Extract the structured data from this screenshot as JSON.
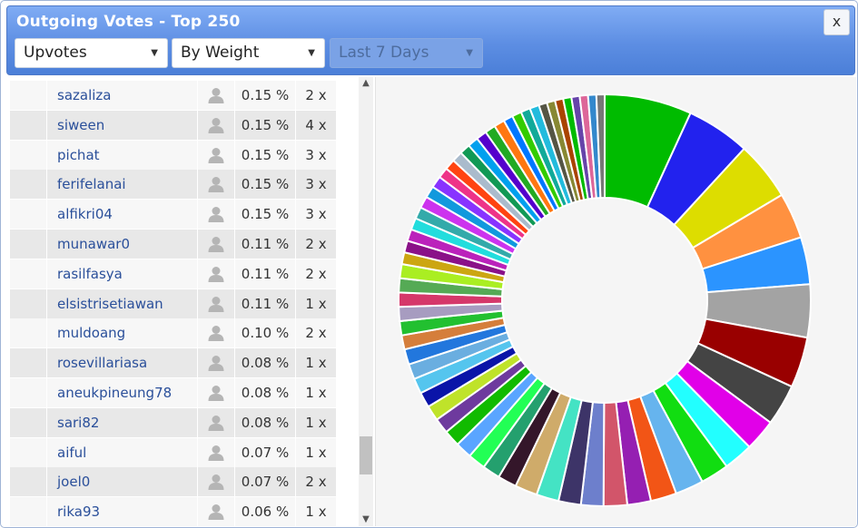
{
  "dialog": {
    "title": "Outgoing Votes - Top 250",
    "close_label": "x"
  },
  "filters": {
    "type": "Upvotes",
    "sort": "By Weight",
    "period": "Last 7 Days"
  },
  "icons": {
    "user": "user-silhouette-icon",
    "dropdown": "triangle-down-icon",
    "scroll_up": "chevron-up-icon",
    "scroll_down": "chevron-down-icon"
  },
  "rows": [
    {
      "name": "sazaliza",
      "percent": "0.15 %",
      "count": "2 x"
    },
    {
      "name": "siween",
      "percent": "0.15 %",
      "count": "4 x"
    },
    {
      "name": "pichat",
      "percent": "0.15 %",
      "count": "3 x"
    },
    {
      "name": "ferifelanai",
      "percent": "0.15 %",
      "count": "3 x"
    },
    {
      "name": "alfikri04",
      "percent": "0.15 %",
      "count": "3 x"
    },
    {
      "name": "munawar0",
      "percent": "0.11 %",
      "count": "2 x"
    },
    {
      "name": "rasilfasya",
      "percent": "0.11 %",
      "count": "2 x"
    },
    {
      "name": "elsistrisetiawan",
      "percent": "0.11 %",
      "count": "1 x"
    },
    {
      "name": "muldoang",
      "percent": "0.10 %",
      "count": "2 x"
    },
    {
      "name": "rosevillariasa",
      "percent": "0.08 %",
      "count": "1 x"
    },
    {
      "name": "aneukpineung78",
      "percent": "0.08 %",
      "count": "1 x"
    },
    {
      "name": "sari82",
      "percent": "0.08 %",
      "count": "1 x"
    },
    {
      "name": "aiful",
      "percent": "0.07 %",
      "count": "1 x"
    },
    {
      "name": "joel0",
      "percent": "0.07 %",
      "count": "2 x"
    },
    {
      "name": "rika93",
      "percent": "0.06 %",
      "count": "1 x"
    }
  ],
  "chart_data": {
    "type": "pie",
    "variant": "donut",
    "values": [
      37,
      27,
      25,
      19.5,
      20,
      22.5,
      21.5,
      17.5,
      13.5,
      12.5,
      12,
      12,
      11,
      10,
      10,
      9.5,
      9.5,
      9.5,
      9.5,
      8,
      7.5,
      7.5,
      7,
      7,
      6.5,
      6.5,
      6.5,
      6.5,
      6.5,
      6.5,
      6,
      6,
      6,
      6,
      6,
      6,
      5,
      5,
      5,
      5,
      5,
      5,
      5,
      5,
      4.5,
      4.5,
      4.5,
      4.5,
      4.5,
      4.5,
      4.5,
      4.5,
      4,
      4,
      4,
      4,
      3.5,
      3.5,
      3.5,
      3.5,
      3.5,
      3.5,
      3.5,
      3.5
    ],
    "colors": [
      "#00bb00",
      "#2222ee",
      "#dddd00",
      "#ff9140",
      "#2b94ff",
      "#a3a3a3",
      "#990000",
      "#444444",
      "#e100e8",
      "#22ffff",
      "#11dd11",
      "#66b4ee",
      "#f25516",
      "#951fb2",
      "#d2556a",
      "#6d7fcc",
      "#3d3468",
      "#44e3c4",
      "#cfab6a",
      "#34162a",
      "#24a06e",
      "#22ff55",
      "#5aa5ff",
      "#11bb00",
      "#6e3a9e",
      "#bfe32a",
      "#0a14a8",
      "#55c5ee",
      "#6aaee0",
      "#2277dd",
      "#d57e3b",
      "#22c030",
      "#a79cc0",
      "#d5386a",
      "#55aa55",
      "#aaee22",
      "#cca611",
      "#8a1188",
      "#bb22bb",
      "#22dddd",
      "#33aaaa",
      "#cc33ee",
      "#1199dd",
      "#8833ff",
      "#ee3388",
      "#ff4411",
      "#aabbcc",
      "#119955",
      "#00a0ee",
      "#5500cc",
      "#22aa22",
      "#ff7711",
      "#0077ff",
      "#33cc00",
      "#11aa99",
      "#22bbdd",
      "#555544",
      "#888833",
      "#aa4400",
      "#00bb00",
      "#6644aa",
      "#dd6699",
      "#3388cc",
      "#777777"
    ]
  }
}
